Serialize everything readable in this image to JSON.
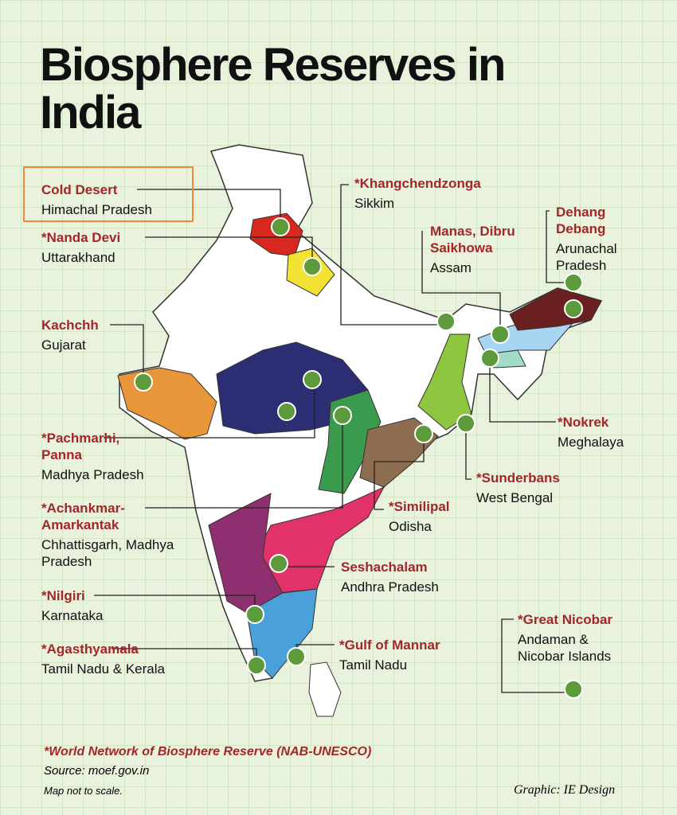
{
  "title": "Biosphere Reserves in India",
  "reserves": [
    {
      "name": "Cold Desert",
      "state": "Himachal Pradesh"
    },
    {
      "name": "*Nanda Devi",
      "state": "Uttarakhand"
    },
    {
      "name": "Kachchh",
      "state": "Gujarat"
    },
    {
      "name": "*Pachmarhi, Panna",
      "state": "Madhya Pradesh"
    },
    {
      "name": "*Achankmar-Amarkantak",
      "state": "Chhattisgarh, Madhya Pradesh"
    },
    {
      "name": "*Nilgiri",
      "state": "Karnataka"
    },
    {
      "name": "*Agasthyamala",
      "state": "Tamil Nadu & Kerala"
    },
    {
      "name": "*Khangchendzonga",
      "state": "Sikkim"
    },
    {
      "name": "Manas, Dibru Saikhowa",
      "state": "Assam"
    },
    {
      "name": "Dehang Debang",
      "state": "Arunachal Pradesh"
    },
    {
      "name": "*Nokrek",
      "state": "Meghalaya"
    },
    {
      "name": "*Sunderbans",
      "state": "West Bengal"
    },
    {
      "name": "*Similipal",
      "state": "Odisha"
    },
    {
      "name": "Seshachalam",
      "state": "Andhra Pradesh"
    },
    {
      "name": "*Gulf of Mannar",
      "state": "Tamil Nadu"
    },
    {
      "name": "*Great Nicobar",
      "state": "Andaman & Nicobar Islands"
    }
  ],
  "footnote": "*World Network of Biosphere Reserve (NAB-UNESCO)",
  "source": "Source: moef.gov.in",
  "scale_note": "Map not to scale.",
  "credit": "Graphic: IE Design"
}
